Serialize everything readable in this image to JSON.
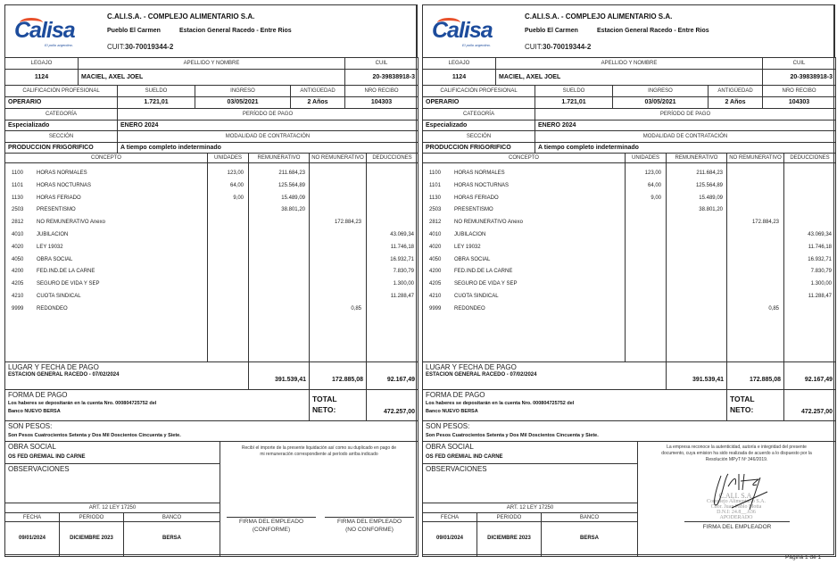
{
  "company": {
    "name": "C.ALI.S.A. - COMPLEJO ALIMENTARIO S.A.",
    "town": "Pueblo El Carmen",
    "address": "Estacion General Racedo - Entre Rios",
    "cuit_label": "CUIT:",
    "cuit": "30-70019344-2",
    "logo_text": "Calisa",
    "logo_tagline": "El pollo argentino.",
    "brand_color": "#1d4c9c",
    "accent_color": "#e8502a"
  },
  "labels": {
    "legajo": "LEGAJO",
    "nombre": "APELLIDO Y NOMBRE",
    "cuil": "CUIL",
    "calificacion": "CALIFICACIÓN PROFESIONAL",
    "sueldo": "SUELDO",
    "ingreso": "INGRESO",
    "antiguedad": "ANTIGÜEDAD",
    "nro_recibo": "NRO RECIBO",
    "categoria": "CATEGORÍA",
    "periodo_pago": "PERÍODO DE PAGO",
    "seccion": "SECCIÓN",
    "modalidad": "MODALIDAD DE CONTRATACIÓN",
    "concepto": "CONCEPTO",
    "unidades": "UNIDADES",
    "remunerativo": "REMUNERATIVO",
    "no_remunerativo": "NO REMUNERATIVO",
    "deducciones": "DEDUCCIONES",
    "lugar_fecha": "LUGAR Y FECHA DE PAGO",
    "forma_pago": "FORMA DE PAGO",
    "total": "TOTAL",
    "neto": "NETO:",
    "son_pesos": "SON PESOS:",
    "obra_social": "OBRA SOCIAL",
    "observaciones": "OBSERVACIONES",
    "art12": "ART. 12  LEY 17250",
    "fecha": "FECHA",
    "periodo": "PERIODO",
    "banco": "BANCO"
  },
  "employee": {
    "legajo": "1124",
    "nombre": "MACIEL, AXEL JOEL",
    "cuil": "20-39838918-3",
    "calificacion": "OPERARIO",
    "sueldo": "1.721,01",
    "ingreso": "03/05/2021",
    "antiguedad": "2 Años",
    "nro_recibo": "104303",
    "categoria": "Especializado",
    "periodo_pago": "ENERO 2024",
    "seccion": "PRODUCCION FRIGORIFICO",
    "modalidad": "A tiempo completo indeterminado"
  },
  "items": [
    {
      "code": "1100",
      "concept": "HORAS NORMALES",
      "units": "123,00",
      "rem": "211.684,23",
      "norem": "",
      "ded": ""
    },
    {
      "code": "1101",
      "concept": "HORAS NOCTURNAS",
      "units": "64,00",
      "rem": "125.564,89",
      "norem": "",
      "ded": ""
    },
    {
      "code": "1130",
      "concept": "HORAS FERIADO",
      "units": "9,00",
      "rem": "15.489,09",
      "norem": "",
      "ded": ""
    },
    {
      "code": "2503",
      "concept": "PRESENTISMO",
      "units": "",
      "rem": "38.801,20",
      "norem": "",
      "ded": ""
    },
    {
      "code": "2812",
      "concept": "NO REMUNERATIVO Anexo",
      "units": "",
      "rem": "",
      "norem": "172.884,23",
      "ded": ""
    },
    {
      "code": "4010",
      "concept": "JUBILACION",
      "units": "",
      "rem": "",
      "norem": "",
      "ded": "43.069,34"
    },
    {
      "code": "4020",
      "concept": "LEY 19032",
      "units": "",
      "rem": "",
      "norem": "",
      "ded": "11.746,18"
    },
    {
      "code": "4050",
      "concept": "OBRA SOCIAL",
      "units": "",
      "rem": "",
      "norem": "",
      "ded": "16.932,71"
    },
    {
      "code": "4200",
      "concept": "FED.IND.DE LA CARNE",
      "units": "",
      "rem": "",
      "norem": "",
      "ded": "7.830,79"
    },
    {
      "code": "4205",
      "concept": "SEGURO DE VIDA Y SEP",
      "units": "",
      "rem": "",
      "norem": "",
      "ded": "1.300,00"
    },
    {
      "code": "4210",
      "concept": "CUOTA SINDICAL",
      "units": "",
      "rem": "",
      "norem": "",
      "ded": "11.288,47"
    },
    {
      "code": "9999",
      "concept": "REDONDEO",
      "units": "",
      "rem": "",
      "norem": "0,85",
      "ded": ""
    }
  ],
  "totals": {
    "lugar_fecha": "ESTACION GENERAL RACEDO - 07/02/2024",
    "rem": "391.539,41",
    "norem": "172.885,08",
    "ded": "92.167,49",
    "neto": "472.257,00"
  },
  "payment": {
    "line1": "Los haberes se depositarán en la cuenta Nro. 000804725752 del",
    "line2": "Banco NUEVO BERSA",
    "son_pesos": "Son Pesos Cuatrocientos Setenta y Dos Mil Doscientos Cincuenta y Siete.",
    "obra_social": "OS FED GREMIAL IND CARNE"
  },
  "art12": {
    "fecha": "09/01/2024",
    "periodo": "DICIEMBRE 2023",
    "banco": "BERSA"
  },
  "employee_copy": {
    "receipt_line1": "Recibí el importe de la presente liquidación así como su duplicado en pago de",
    "receipt_line2": "mi remuneración correspondiente al período arriba indicado",
    "sig1_a": "FIRMA DEL EMPLEADO",
    "sig1_b": "(CONFORME)",
    "sig2_a": "FIRMA DEL EMPLEADO",
    "sig2_b": "(NO CONFORME)"
  },
  "employer_copy": {
    "legal_line1": "La empresa reconoce la autenticidad, autoría e integridad del presente",
    "legal_line2": "documento, cuya emision ha sido realizada de acuerdo a lo dispuesto por la",
    "legal_line3": "Resolución MPyT Nº 346/2019.",
    "stamp_lines": [
      "C.ALI. S.A.",
      "Complejo Alimentario S.A.",
      "Cdor. Juan Pablo Motta",
      "D.N.I: 24.8__.636",
      "APODERADO"
    ],
    "sig_label": "FIRMA DEL EMPLEADOR"
  },
  "footer": {
    "page": "Página 1 de 1"
  }
}
